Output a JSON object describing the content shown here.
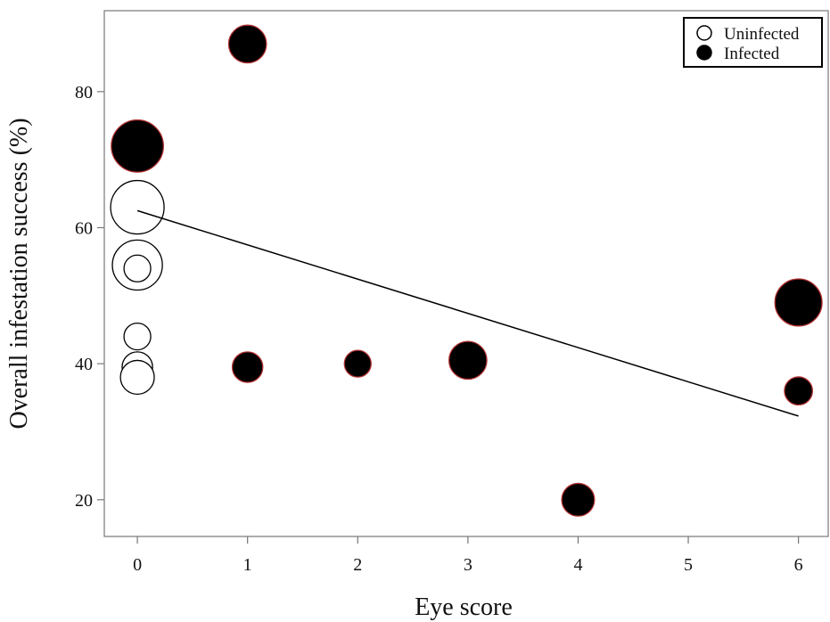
{
  "chart_data": {
    "type": "scatter",
    "xlabel": "Eye score",
    "ylabel": "Overall infestation success (%)",
    "xlim": [
      -0.3,
      6.27
    ],
    "ylim": [
      14.6,
      91.9
    ],
    "x_ticks": [
      "0",
      "1",
      "2",
      "3",
      "4",
      "5",
      "6"
    ],
    "y_ticks": [
      "20",
      "40",
      "60",
      "80"
    ],
    "grid": false,
    "legend_position": "top-right",
    "colors": {
      "infected_fill": "#000000",
      "infected_edge": "#b03030",
      "uninfected_fill": "#ffffff",
      "uninfected_edge": "#000000",
      "trend_line": "#000000"
    },
    "series": [
      {
        "name": "Uninfected",
        "points": [
          {
            "x": 0,
            "y": 63,
            "size": 4
          },
          {
            "x": 0,
            "y": 54.5,
            "size": 3.5
          },
          {
            "x": 0,
            "y": 54,
            "size": 1
          },
          {
            "x": 0,
            "y": 44,
            "size": 1
          },
          {
            "x": 0,
            "y": 39.5,
            "size": 1.3
          },
          {
            "x": 0,
            "y": 38.5,
            "size": 1
          },
          {
            "x": 0,
            "y": 38,
            "size": 1.6
          }
        ]
      },
      {
        "name": "Infected",
        "points": [
          {
            "x": 0,
            "y": 72,
            "size": 3.8
          },
          {
            "x": 1,
            "y": 87,
            "size": 2
          },
          {
            "x": 1,
            "y": 39.5,
            "size": 1.3
          },
          {
            "x": 2,
            "y": 40,
            "size": 1
          },
          {
            "x": 3,
            "y": 40.5,
            "size": 2
          },
          {
            "x": 4,
            "y": 20,
            "size": 1.5
          },
          {
            "x": 6,
            "y": 49,
            "size": 3.1
          },
          {
            "x": 6,
            "y": 36,
            "size": 1.1
          }
        ]
      }
    ],
    "trend_line": {
      "x": [
        0,
        6
      ],
      "y": [
        62.5,
        32.3
      ]
    }
  }
}
